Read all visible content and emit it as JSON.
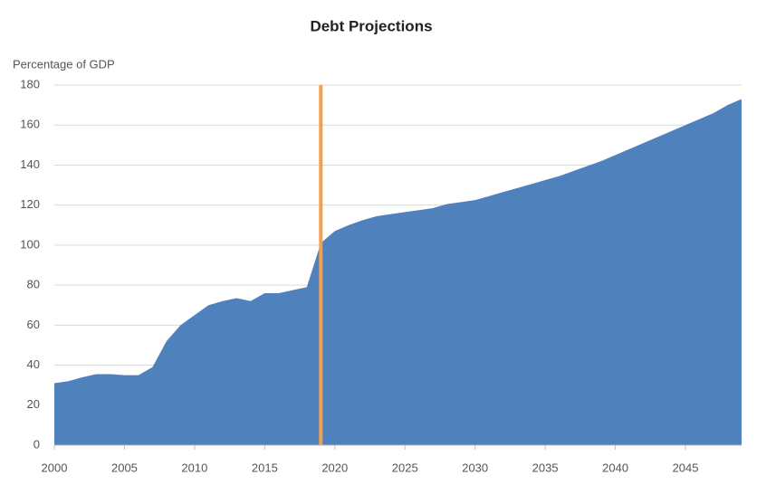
{
  "chart_data": {
    "type": "area",
    "title": "Debt Projections",
    "y_label": "Percentage of GDP",
    "x": [
      2000,
      2001,
      2002,
      2003,
      2004,
      2005,
      2006,
      2007,
      2008,
      2009,
      2010,
      2011,
      2012,
      2013,
      2014,
      2015,
      2016,
      2017,
      2018,
      2019,
      2020,
      2021,
      2022,
      2023,
      2024,
      2025,
      2026,
      2027,
      2028,
      2029,
      2030,
      2031,
      2032,
      2033,
      2034,
      2035,
      2036,
      2037,
      2038,
      2039,
      2040,
      2041,
      2042,
      2043,
      2044,
      2045,
      2046,
      2047,
      2048,
      2049
    ],
    "values": [
      31,
      32,
      34,
      35.5,
      35.5,
      35,
      35,
      39,
      52,
      60,
      65,
      70,
      72,
      73.5,
      72,
      76,
      76,
      77.5,
      79,
      101,
      107,
      110,
      112.5,
      114.5,
      115.5,
      116.5,
      117.5,
      118.5,
      120.5,
      121.5,
      122.5,
      124.5,
      126.5,
      128.5,
      130.5,
      132.5,
      134.5,
      137,
      139.5,
      142,
      145,
      148,
      151,
      154,
      157,
      160,
      163,
      166,
      170,
      173
    ],
    "color": "#4f81bd",
    "xlim": [
      2000,
      2049
    ],
    "xticks": [
      2000,
      2005,
      2010,
      2015,
      2020,
      2025,
      2030,
      2035,
      2040,
      2045
    ],
    "ylim": [
      0,
      180
    ],
    "yticks": [
      0,
      20,
      40,
      60,
      80,
      100,
      120,
      140,
      160,
      180
    ],
    "grid": true,
    "vline": {
      "x": 2019,
      "color": "#f4a04e"
    }
  }
}
